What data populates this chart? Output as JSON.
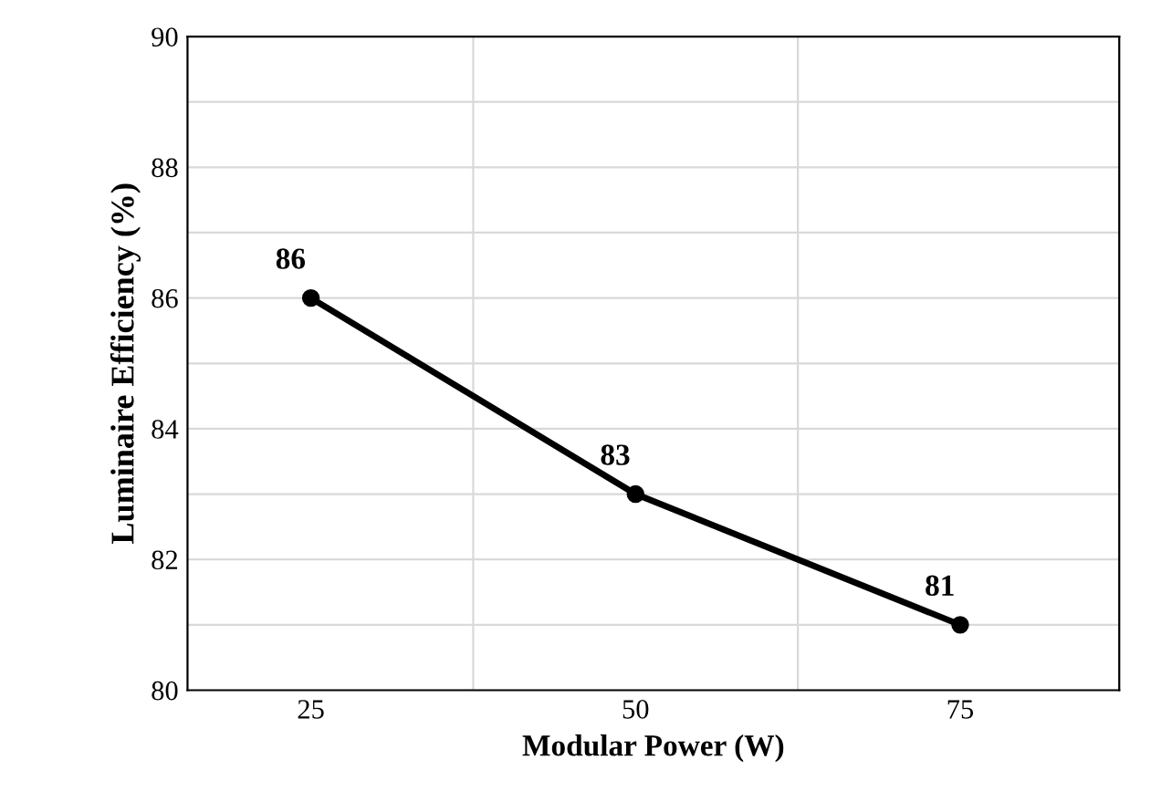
{
  "chart_data": {
    "type": "line",
    "xlabel": "Modular Power (W)",
    "ylabel": "Luminaire Efficiency (%)",
    "categories": [
      "25",
      "50",
      "75"
    ],
    "series": [
      {
        "color": "#000000",
        "values": [
          86,
          83,
          81
        ]
      }
    ],
    "ylim": [
      80,
      90
    ],
    "yticks": [
      80,
      82,
      84,
      86,
      88,
      90
    ],
    "grid": true,
    "marker": "circle",
    "line_style": "solid",
    "data_labels": true
  }
}
